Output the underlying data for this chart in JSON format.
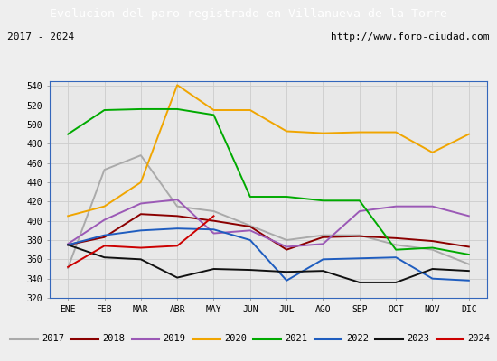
{
  "title": "Evolucion del paro registrado en Villanueva de la Torre",
  "title_color": "#ffffff",
  "title_bg_color": "#4472c4",
  "subtitle_left": "2017 - 2024",
  "subtitle_right": "http://www.foro-ciudad.com",
  "x_labels": [
    "ENE",
    "FEB",
    "MAR",
    "ABR",
    "MAY",
    "JUN",
    "JUL",
    "AGO",
    "SEP",
    "OCT",
    "NOV",
    "DIC"
  ],
  "ylim": [
    320,
    545
  ],
  "yticks": [
    320,
    340,
    360,
    380,
    400,
    420,
    440,
    460,
    480,
    500,
    520,
    540
  ],
  "series": {
    "2017": {
      "color": "#aaaaaa",
      "values": [
        351,
        453,
        468,
        415,
        410,
        395,
        380,
        385,
        385,
        375,
        370,
        355
      ]
    },
    "2018": {
      "color": "#8b0000",
      "values": [
        375,
        383,
        407,
        405,
        400,
        394,
        370,
        383,
        384,
        382,
        379,
        373
      ]
    },
    "2019": {
      "color": "#9b59b6",
      "values": [
        376,
        401,
        418,
        422,
        387,
        390,
        373,
        376,
        410,
        415,
        415,
        405
      ]
    },
    "2020": {
      "color": "#f0a500",
      "values": [
        405,
        415,
        440,
        541,
        515,
        515,
        493,
        491,
        492,
        492,
        471,
        490
      ]
    },
    "2021": {
      "color": "#00aa00",
      "values": [
        490,
        515,
        516,
        516,
        510,
        425,
        425,
        421,
        421,
        370,
        372,
        365
      ]
    },
    "2022": {
      "color": "#1f5dbf",
      "values": [
        375,
        385,
        390,
        392,
        391,
        380,
        338,
        360,
        361,
        362,
        340,
        338
      ]
    },
    "2023": {
      "color": "#111111",
      "values": [
        375,
        362,
        360,
        341,
        350,
        349,
        347,
        348,
        336,
        336,
        350,
        348
      ]
    },
    "2024": {
      "color": "#cc0000",
      "values": [
        352,
        374,
        372,
        374,
        405,
        null,
        null,
        null,
        null,
        null,
        null,
        null
      ]
    }
  },
  "legend_order": [
    "2017",
    "2018",
    "2019",
    "2020",
    "2021",
    "2022",
    "2023",
    "2024"
  ],
  "bg_color": "#eeeeee",
  "plot_bg_color": "#e8e8e8",
  "border_color": "#3366bb",
  "grid_color": "#cccccc"
}
